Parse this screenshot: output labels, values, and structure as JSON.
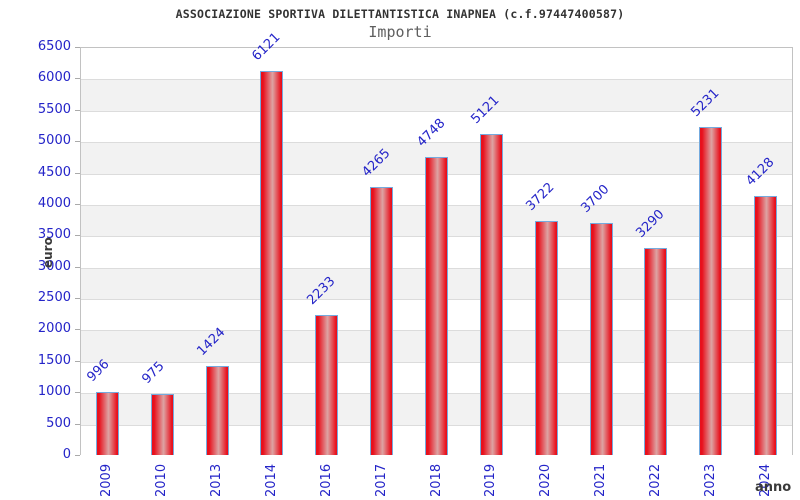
{
  "title": "ASSOCIAZIONE SPORTIVA DILETTANTISTICA INAPNEA (c.f.97447400587)",
  "subtitle": "Importi",
  "chart_data": {
    "type": "bar",
    "title": "ASSOCIAZIONE SPORTIVA DILETTANTISTICA INAPNEA (c.f.97447400587)",
    "subtitle": "Importi",
    "categories": [
      "2009",
      "2010",
      "2013",
      "2014",
      "2016",
      "2017",
      "2018",
      "2019",
      "2020",
      "2021",
      "2022",
      "2023",
      "2024"
    ],
    "values": [
      996,
      975,
      1424,
      6121,
      2233,
      4265,
      4748,
      5121,
      3722,
      3700,
      3290,
      5231,
      4128
    ],
    "xlabel": "anno",
    "ylabel": "euro",
    "ylim": [
      0,
      6500
    ],
    "ytick_step": 500,
    "grid": true,
    "legend": "none",
    "value_labels_rotation_deg": -45,
    "xtick_rotation_deg": -90,
    "colors": {
      "title_color": "#333333",
      "subtitle_color": "#5f5f5f",
      "tick_label": "#2424c8",
      "value_label": "#2424c8",
      "axis_title": "#3a3a3a",
      "bar_edge_red": "#e8101c",
      "bar_center_light": "#dda4a4",
      "bar_border": "#74aade",
      "band_alt": "#f2f2f2",
      "band_main": "#ffffff",
      "gridline": "#dcdcdc",
      "plot_border": "#c2c2c2",
      "tick_mark": "#aaaaaa",
      "background": "#ffffff"
    }
  }
}
